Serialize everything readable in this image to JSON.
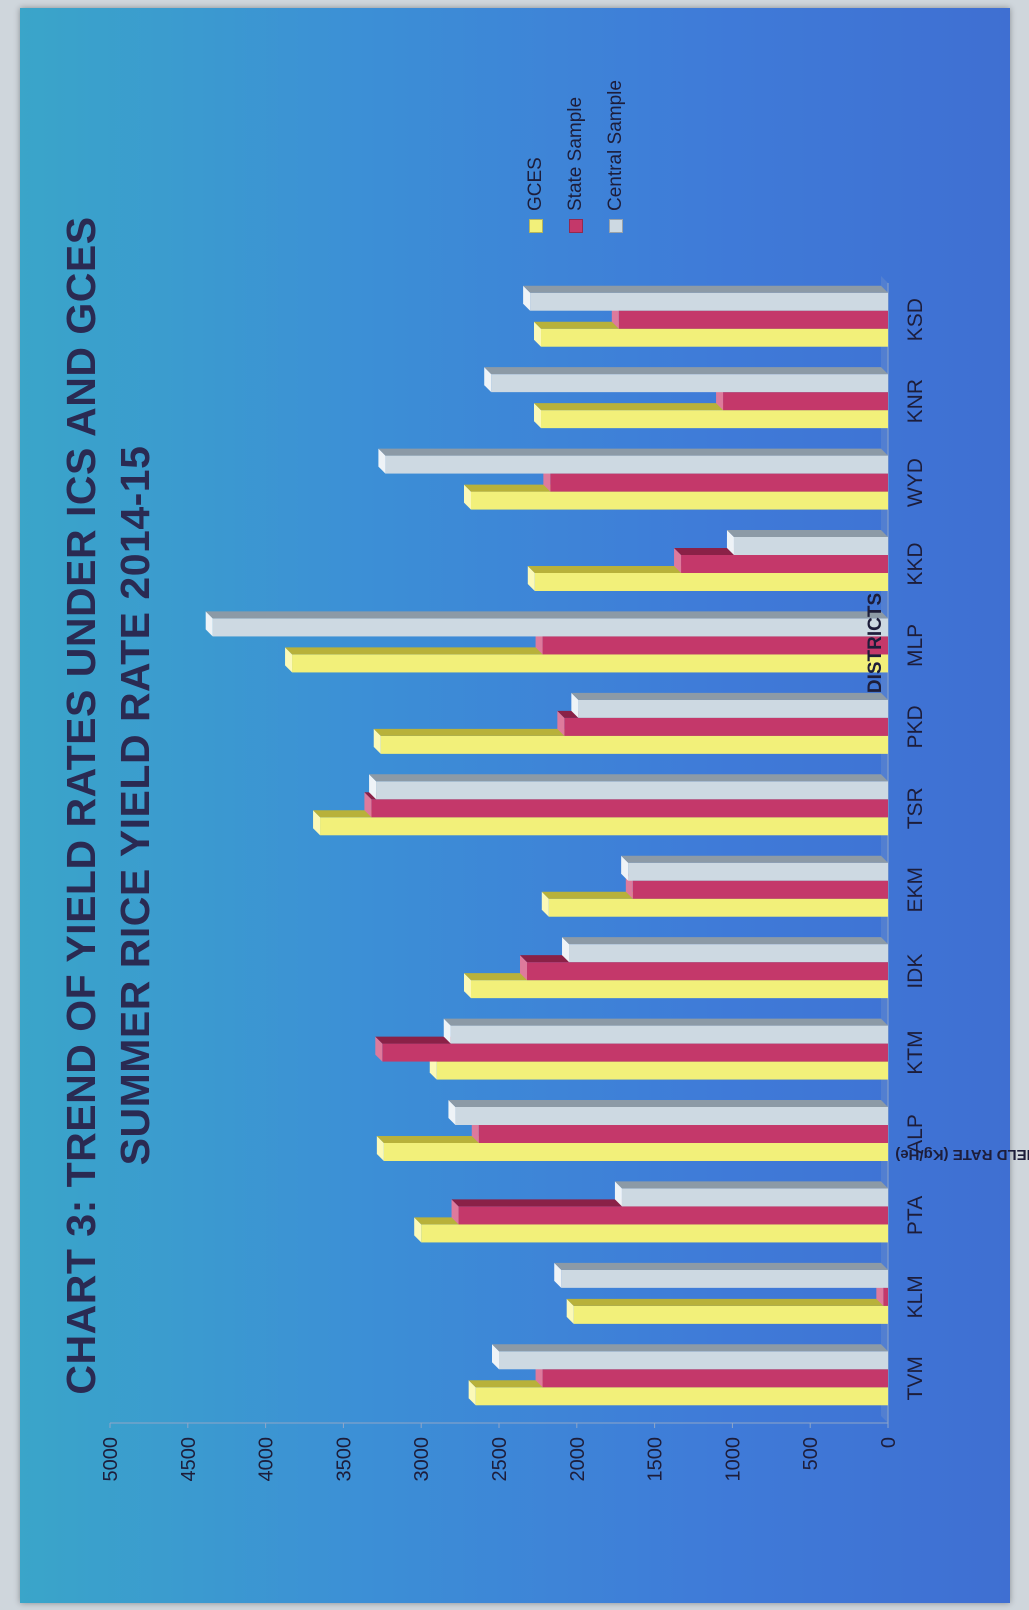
{
  "chart_data": {
    "type": "bar",
    "title": "CHART 3: TREND OF YIELD RATES UNDER ICS AND GCES",
    "subtitle": "SUMMER RICE YIELD RATE 2014-15",
    "xlabel": "DISTRICTS",
    "ylabel": "YIELD RATE (Kg/He)",
    "ylim": [
      0,
      5000
    ],
    "yticks": [
      "0",
      "500",
      "1000",
      "1500",
      "2000",
      "2500",
      "3000",
      "3500",
      "4000",
      "4500",
      "5000"
    ],
    "categories": [
      "TVM",
      "KLM",
      "PTA",
      "ALP",
      "KTM",
      "IDK",
      "EKM",
      "TSR",
      "PKD",
      "MLP",
      "KKD",
      "WYD",
      "KNR",
      "KSD"
    ],
    "series": [
      {
        "name": "GCES",
        "values": [
          2650,
          2020,
          3000,
          3240,
          2900,
          2680,
          2180,
          3650,
          3260,
          3830,
          2270,
          2680,
          2230,
          2230
        ]
      },
      {
        "name": "State Sample",
        "values": [
          2220,
          30,
          2760,
          2630,
          3250,
          2320,
          1640,
          3320,
          2080,
          2220,
          1330,
          2170,
          1060,
          1730
        ]
      },
      {
        "name": "Central Sample",
        "values": [
          2500,
          2100,
          1710,
          2780,
          2810,
          2050,
          1670,
          3290,
          1990,
          4340,
          990,
          3230,
          2550,
          2300
        ]
      }
    ],
    "grid": false,
    "legend_position": "right",
    "orientation": "rotated 90 degrees counter-clockwise",
    "colors": {
      "GCES": "#f2f07a",
      "State Sample": "#c4386a",
      "Central Sample": "#cdd9e2",
      "background": "#3f86d6",
      "title": "#2a2a52"
    }
  }
}
